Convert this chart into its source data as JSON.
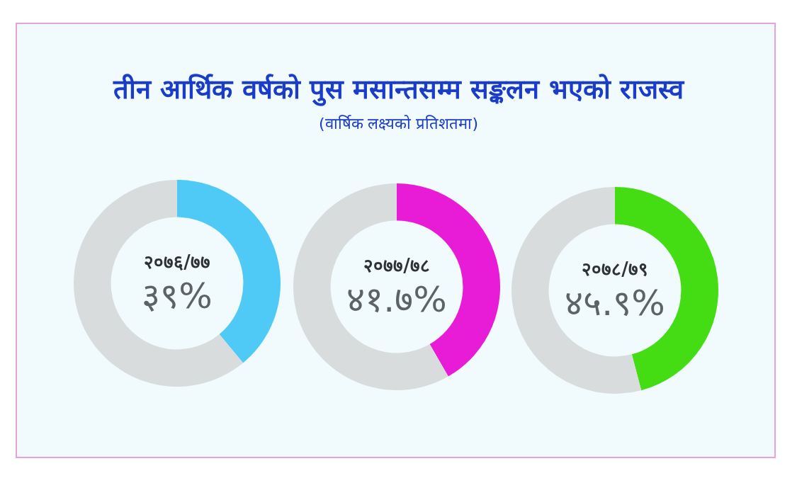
{
  "chart_data": [
    {
      "type": "other",
      "title": "तीन आर्थिक वर्षको पुस मसान्तसम्म सङ्कलन भएको राजस्व",
      "subtitle": "(वार्षिक लक्ष्यको प्रतिशतमा)"
    },
    {
      "type": "donut",
      "categories": [
        "२०७६/७७",
        null
      ],
      "values": [
        39,
        61
      ],
      "colors": [
        "#4fcaf7",
        "#d9dcdd"
      ],
      "value_labels": [
        "३९%",
        null
      ]
    },
    {
      "type": "donut",
      "categories": [
        "२०७७/७८",
        null
      ],
      "values": [
        41.7,
        58.3
      ],
      "colors": [
        "#e81bd6",
        "#d9dcdd"
      ],
      "value_labels": [
        "४१.७%",
        null
      ]
    },
    {
      "type": "donut",
      "categories": [
        "२०७८/७९",
        null
      ],
      "values": [
        45.9,
        54.1
      ],
      "colors": [
        "#44dc12",
        "#d9dcdd"
      ],
      "value_labels": [
        "४५.९%",
        null
      ]
    }
  ]
}
